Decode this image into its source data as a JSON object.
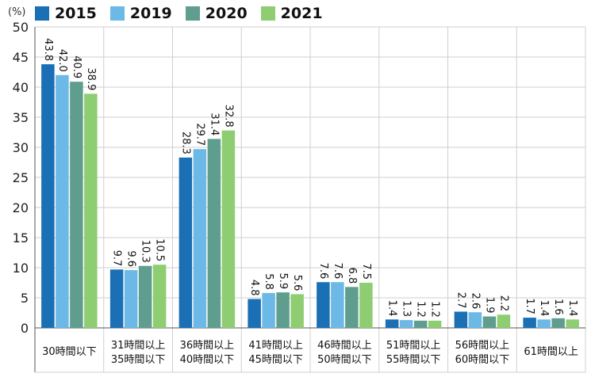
{
  "chart_data": {
    "type": "bar",
    "unit_label": "(%)",
    "ylim": [
      0,
      50
    ],
    "yticks": [
      0,
      5,
      10,
      15,
      20,
      25,
      30,
      35,
      40,
      45,
      50
    ],
    "categories": [
      [
        "30時間以下"
      ],
      [
        "31時間以上",
        "35時間以下"
      ],
      [
        "36時間以上",
        "40時間以下"
      ],
      [
        "41時間以上",
        "45時間以下"
      ],
      [
        "46時間以上",
        "50時間以下"
      ],
      [
        "51時間以上",
        "55時間以下"
      ],
      [
        "56時間以上",
        "60時間以下"
      ],
      [
        "61時間以上"
      ]
    ],
    "series": [
      {
        "name": "2015",
        "color": "#1a6fb5",
        "values": [
          43.8,
          9.7,
          28.3,
          4.8,
          7.6,
          1.4,
          2.7,
          1.7
        ]
      },
      {
        "name": "2019",
        "color": "#6cb8e6",
        "values": [
          42.0,
          9.6,
          29.7,
          5.8,
          7.6,
          1.3,
          2.6,
          1.4
        ]
      },
      {
        "name": "2020",
        "color": "#5f9e8e",
        "values": [
          40.9,
          10.3,
          31.4,
          5.9,
          6.8,
          1.2,
          1.9,
          1.6
        ]
      },
      {
        "name": "2021",
        "color": "#8fcd73",
        "values": [
          38.9,
          10.5,
          32.8,
          5.6,
          7.5,
          1.2,
          2.2,
          1.4
        ]
      }
    ]
  }
}
